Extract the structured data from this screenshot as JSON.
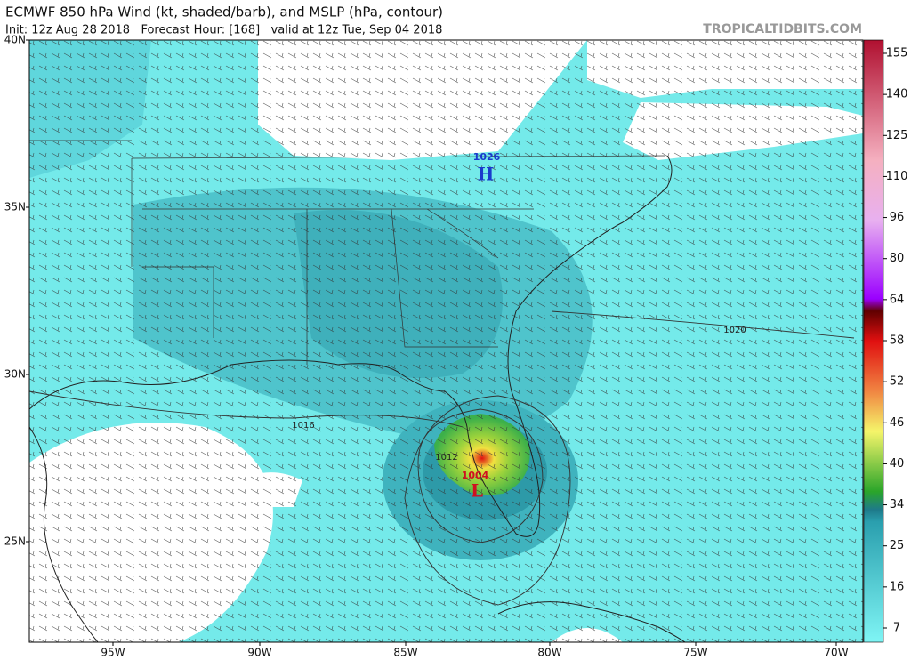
{
  "header": {
    "title": "ECMWF 850 hPa Wind (kt, shaded/barb), and MSLP (hPa, contour)",
    "subtitle": "Init: 12z Aug 28 2018   Forecast Hour: [168]   valid at 12z Tue, Sep 04 2018",
    "watermark": "TROPICALTIDBITS.COM"
  },
  "map": {
    "lat_labels": [
      "40N",
      "35N",
      "30N",
      "25N"
    ],
    "lon_labels": [
      "95W",
      "90W",
      "85W",
      "80W",
      "75W",
      "70W"
    ],
    "contour_labels": [
      "1026",
      "1020",
      "1016",
      "1012",
      "1004"
    ],
    "pressure_centers": [
      "H",
      "L"
    ]
  },
  "legend": {
    "labels": [
      "155",
      "140",
      "125",
      "110",
      "96",
      "80",
      "64",
      "58",
      "52",
      "46",
      "40",
      "34",
      "25",
      "16",
      "7"
    ]
  }
}
